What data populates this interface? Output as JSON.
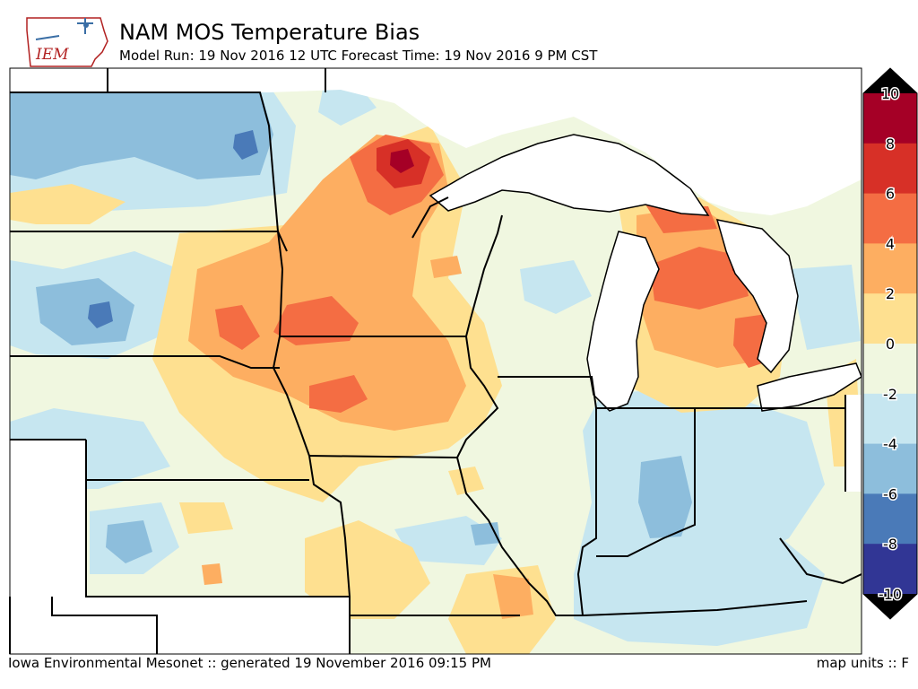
{
  "header": {
    "title": "NAM MOS Temperature Bias",
    "subtitle": "Model Run: 19 Nov 2016 12 UTC Forecast Time: 19 Nov 2016 9 PM CST",
    "logo_text": "IEM"
  },
  "footer": {
    "left": "Iowa Environmental Mesonet :: generated 19 November 2016 09:15 PM",
    "right": "map units :: F"
  },
  "colorbar": {
    "labels": [
      "10",
      "8",
      "6",
      "4",
      "2",
      "0",
      "-2",
      "-4",
      "-6",
      "-8",
      "-10"
    ],
    "colors": [
      "#a50026",
      "#d73027",
      "#f46d43",
      "#fdae61",
      "#fee090",
      "#f0f7e0",
      "#c6e6f0",
      "#8dbedc",
      "#4a7ab8",
      "#313695"
    ],
    "over_color": "#000000",
    "under_color": "#000000"
  },
  "palette": {
    "water": "#ffffff",
    "lightblue": "#c6e6f0",
    "blue": "#8dbedc",
    "darkblue": "#4a7ab8",
    "neutral": "#f0f7e0",
    "yellow": "#fee090",
    "orange_light": "#fdae61",
    "orange": "#f46d43",
    "red": "#d73027",
    "darkred": "#a50026"
  }
}
